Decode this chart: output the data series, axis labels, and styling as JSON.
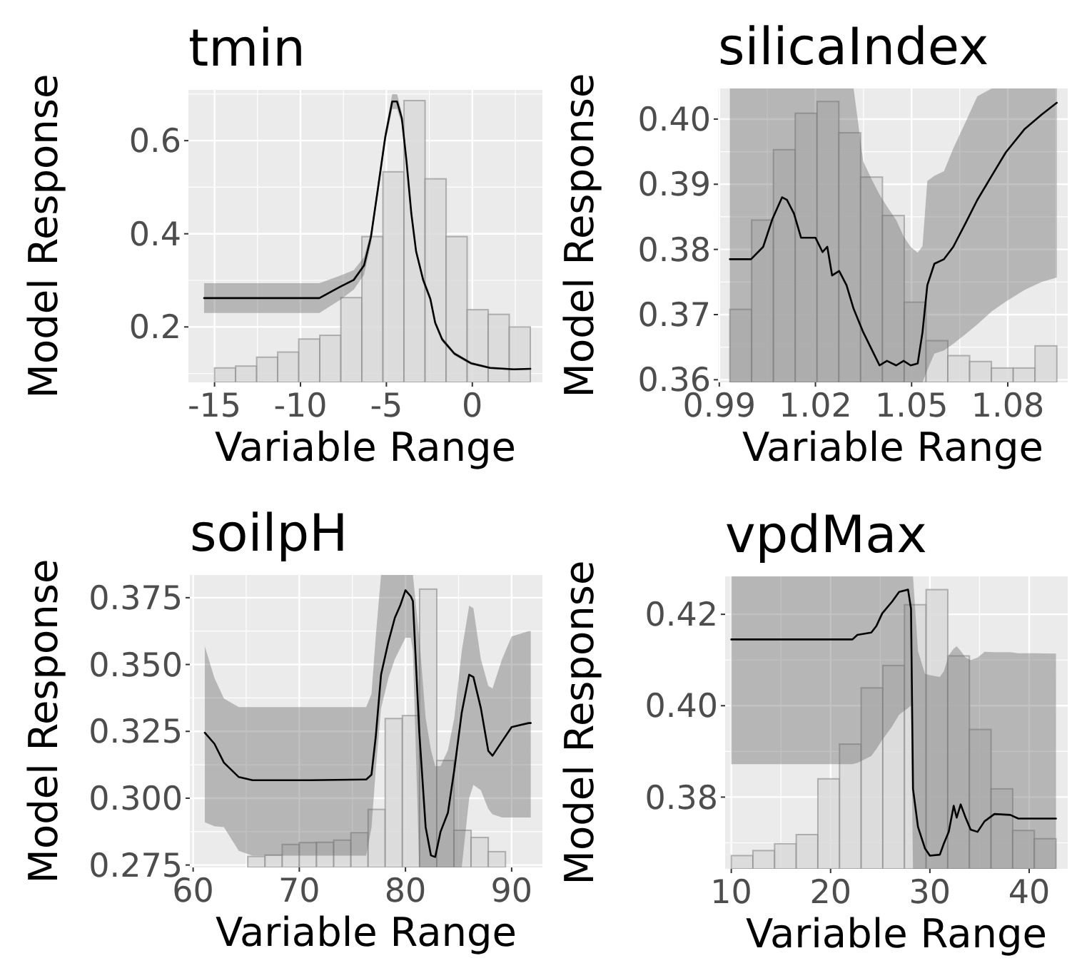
{
  "chart_data": [
    {
      "type": "histogram",
      "title": "tmin",
      "xlabel": "Variable Range",
      "ylabel": "Model Response",
      "xlim": [
        -16.52,
        4.08
      ],
      "ylim": [
        0.081,
        0.709
      ],
      "xticks": [
        -15,
        -10,
        -5,
        0
      ],
      "yticks": [
        0.2,
        0.4,
        0.6
      ],
      "grid": true,
      "series": [
        {
          "color": "#d9d9d9",
          "bins": [
            -15,
            -13.775,
            -12.55,
            -11.325,
            -10.1,
            -8.875,
            -7.65,
            -6.425,
            -5.2,
            -3.975,
            -2.75,
            -1.525,
            -0.3,
            0.925,
            2.15,
            3.375
          ],
          "values": [
            0.112,
            0.116,
            0.135,
            0.146,
            0.174,
            0.182,
            0.263,
            0.394,
            0.533,
            0.686,
            0.518,
            0.394,
            0.237,
            0.227,
            0.2
          ]
        },
        {
          "type": "line",
          "color": "#000000",
          "x": [
            -15.61,
            -8.9,
            -7.7,
            -6.9,
            -6.3,
            -5.9,
            -5.5,
            -5.07,
            -4.66,
            -4.38,
            -4.1,
            -3.83,
            -3.55,
            -3.27,
            -2.86,
            -2.44,
            -2.16,
            -1.75,
            -1.05,
            -0.08,
            1.03,
            2.41,
            3.38
          ],
          "values": [
            0.262,
            0.262,
            0.286,
            0.301,
            0.332,
            0.393,
            0.495,
            0.607,
            0.684,
            0.684,
            0.648,
            0.556,
            0.444,
            0.362,
            0.301,
            0.26,
            0.209,
            0.173,
            0.143,
            0.122,
            0.112,
            0.109,
            0.11
          ],
          "lower": [
            0.23,
            0.23,
            0.258,
            0.28,
            0.312,
            0.378,
            0.482,
            0.593,
            0.668,
            0.668,
            0.635,
            0.545,
            0.435,
            0.354,
            0.293,
            0.253,
            0.203,
            0.168,
            0.139,
            0.119,
            0.11,
            0.107,
            0.108
          ],
          "upper": [
            0.294,
            0.294,
            0.31,
            0.322,
            0.35,
            0.405,
            0.508,
            0.62,
            0.7,
            0.7,
            0.66,
            0.567,
            0.453,
            0.37,
            0.309,
            0.267,
            0.215,
            0.178,
            0.147,
            0.125,
            0.115,
            0.111,
            0.112
          ]
        }
      ]
    },
    {
      "type": "histogram",
      "title": "silicaIndex",
      "xlabel": "Variable Range",
      "ylabel": "Model Response",
      "xlim": [
        0.9896,
        1.0987
      ],
      "ylim": [
        0.3596,
        0.4047
      ],
      "xticks": [
        0.99,
        1.02,
        1.05,
        1.08
      ],
      "yticks": [
        0.36,
        0.37,
        0.38,
        0.39,
        {
          "value": 0.4,
          "label": "0.40"
        }
      ],
      "grid": true,
      "series": [
        {
          "color": "#d9d9d9",
          "bins": [
            0.9933,
            1.0001,
            1.0069,
            1.0137,
            1.0205,
            1.0273,
            1.0341,
            1.0409,
            1.0477,
            1.0545,
            1.0613,
            1.0681,
            1.0749,
            1.0817,
            1.0885,
            1.0953
          ],
          "values": [
            0.3708,
            0.3845,
            0.3953,
            0.4009,
            0.4027,
            0.3979,
            0.3911,
            0.3852,
            0.3719,
            0.366,
            0.3637,
            0.3628,
            0.3618,
            0.3618,
            0.3652
          ]
        },
        {
          "type": "line",
          "color": "#000000",
          "x": [
            0.9933,
            0.9999,
            1.0037,
            1.0066,
            1.0096,
            1.0111,
            1.0133,
            1.0155,
            1.0178,
            1.02,
            1.0222,
            1.0237,
            1.0252,
            1.0274,
            1.0297,
            1.0319,
            1.0349,
            1.0378,
            1.04,
            1.0423,
            1.0452,
            1.0475,
            1.0497,
            1.0519,
            1.0534,
            1.0549,
            1.0571,
            1.0601,
            1.063,
            1.0668,
            1.0705,
            1.075,
            1.0794,
            1.0853,
            1.0906,
            1.0953
          ],
          "values": [
            0.3785,
            0.3785,
            0.3804,
            0.3847,
            0.388,
            0.3876,
            0.3855,
            0.3818,
            0.3818,
            0.3818,
            0.3796,
            0.3804,
            0.376,
            0.3767,
            0.3745,
            0.3709,
            0.3673,
            0.3644,
            0.3622,
            0.3629,
            0.3622,
            0.3629,
            0.3622,
            0.3625,
            0.3673,
            0.3745,
            0.3778,
            0.3785,
            0.3804,
            0.384,
            0.3876,
            0.3913,
            0.3949,
            0.3985,
            0.4007,
            0.4025
          ],
          "lower": [
            0.3596,
            0.3596,
            0.3596,
            0.3596,
            0.3596,
            0.3596,
            0.3596,
            0.3596,
            0.3596,
            0.3596,
            0.3596,
            0.3596,
            0.3596,
            0.3596,
            0.3596,
            0.3596,
            0.3596,
            0.3596,
            0.3596,
            0.3596,
            0.3596,
            0.3596,
            0.3596,
            0.3596,
            0.3596,
            0.3615,
            0.364,
            0.3645,
            0.3655,
            0.367,
            0.3685,
            0.3705,
            0.372,
            0.3738,
            0.375,
            0.3757
          ],
          "upper": [
            0.4047,
            0.4047,
            0.4047,
            0.4047,
            0.4047,
            0.4047,
            0.4047,
            0.4047,
            0.4047,
            0.4047,
            0.4047,
            0.4047,
            0.4047,
            0.4047,
            0.4047,
            0.4047,
            0.3935,
            0.3905,
            0.3884,
            0.3866,
            0.3845,
            0.382,
            0.3804,
            0.3795,
            0.3805,
            0.3905,
            0.3913,
            0.392,
            0.3955,
            0.3995,
            0.4035,
            0.4047,
            0.4047,
            0.4047,
            0.4047,
            0.4047
          ]
        }
      ]
    },
    {
      "type": "histogram",
      "title": "soilpH",
      "xlabel": "Variable Range",
      "ylabel": "Model Response",
      "xlim": [
        59.69,
        92.9
      ],
      "ylim": [
        0.2741,
        0.3835
      ],
      "xticks": [
        60,
        70,
        80,
        90
      ],
      "yticks": [
        0.275,
        {
          "value": 0.3,
          "label": "0.300"
        },
        0.325,
        {
          "value": 0.35,
          "label": "0.350"
        },
        0.375
      ],
      "grid": true,
      "series": [
        {
          "color": "#d9d9d9",
          "bins": [
            65.15,
            66.77,
            68.39,
            70.0,
            71.62,
            73.24,
            74.86,
            76.48,
            78.09,
            79.71,
            81.33,
            82.95,
            84.57,
            86.18,
            87.8,
            89.42
          ],
          "values": [
            0.2782,
            0.2787,
            0.2827,
            0.2834,
            0.2835,
            0.2843,
            0.2871,
            0.2958,
            0.3298,
            0.3309,
            0.3782,
            0.3141,
            0.288,
            0.2853,
            0.28
          ]
        },
        {
          "type": "line",
          "color": "#000000",
          "x": [
            61.1,
            62.0,
            62.9,
            64.3,
            65.6,
            71,
            76.3,
            76.8,
            77.2,
            77.7,
            78.4,
            79,
            79.5,
            80.0,
            80.5,
            80.7,
            81.3,
            81.9,
            82.4,
            82.8,
            83.3,
            84.0,
            84.6,
            85.3,
            86.0,
            86.4,
            87.1,
            87.8,
            88.2,
            89.1,
            90.0,
            91.6,
            91.8
          ],
          "values": [
            0.3245,
            0.3204,
            0.3133,
            0.3079,
            0.3067,
            0.3067,
            0.307,
            0.3088,
            0.323,
            0.3462,
            0.3586,
            0.3675,
            0.372,
            0.3778,
            0.3755,
            0.3737,
            0.3248,
            0.2892,
            0.2786,
            0.278,
            0.2874,
            0.2946,
            0.3106,
            0.332,
            0.3462,
            0.3453,
            0.3337,
            0.3177,
            0.3159,
            0.3213,
            0.3266,
            0.3281,
            0.3281
          ],
          "lower": [
            0.291,
            0.2895,
            0.2892,
            0.2803,
            0.2785,
            0.2785,
            0.2785,
            0.289,
            0.3106,
            0.3337,
            0.345,
            0.352,
            0.356,
            0.36,
            0.36,
            0.355,
            0.2741,
            0.2741,
            0.2741,
            0.2741,
            0.2741,
            0.2741,
            0.2741,
            0.2741,
            0.3,
            0.305,
            0.303,
            0.296,
            0.294,
            0.2928,
            0.2928,
            0.2928,
            0.2928
          ],
          "upper": [
            0.3568,
            0.345,
            0.3373,
            0.3341,
            0.3341,
            0.3341,
            0.3341,
            0.339,
            0.3604,
            0.3835,
            0.3835,
            0.3835,
            0.3835,
            0.3835,
            0.3835,
            0.3835,
            0.36,
            0.33,
            0.318,
            0.312,
            0.312,
            0.318,
            0.33,
            0.355,
            0.372,
            0.371,
            0.352,
            0.342,
            0.341,
            0.352,
            0.3605,
            0.3625,
            0.3625
          ]
        }
      ]
    },
    {
      "type": "histogram",
      "title": "vpdMax",
      "xlabel": "Variable Range",
      "ylabel": "Model Response",
      "xlim": [
        9.38,
        43.88
      ],
      "ylim": [
        0.3643,
        0.4283
      ],
      "xticks": [
        10,
        20,
        30,
        40
      ],
      "yticks": [
        0.38,
        {
          "value": 0.4,
          "label": "0.40"
        },
        0.42
      ],
      "grid": true,
      "series": [
        {
          "color": "#d9d9d9",
          "bins": [
            10,
            12.18,
            14.36,
            16.54,
            18.72,
            20.9,
            23.08,
            25.26,
            27.44,
            29.62,
            31.8,
            33.98,
            36.16,
            38.34,
            40.52,
            42.7
          ],
          "values": [
            0.3672,
            0.3683,
            0.3698,
            0.3718,
            0.384,
            0.3916,
            0.4039,
            0.4088,
            0.4221,
            0.4254,
            0.4109,
            0.3948,
            0.3818,
            0.3727,
            0.3709
          ]
        },
        {
          "type": "line",
          "color": "#000000",
          "x": [
            10,
            22.2,
            22.7,
            24.1,
            24.6,
            25.2,
            26.2,
            26.9,
            27.8,
            28.1,
            28.3,
            28.8,
            29.5,
            30.0,
            31.0,
            31.4,
            31.9,
            32.4,
            32.7,
            33.1,
            33.6,
            34.1,
            34.8,
            35.5,
            36.5,
            38.1,
            38.9,
            40.5,
            42.7
          ],
          "values": [
            0.4145,
            0.4145,
            0.4155,
            0.416,
            0.4174,
            0.4202,
            0.4228,
            0.4249,
            0.4254,
            0.4212,
            0.3818,
            0.3735,
            0.3688,
            0.3672,
            0.3674,
            0.3698,
            0.3724,
            0.3781,
            0.3755,
            0.3784,
            0.3755,
            0.3729,
            0.3724,
            0.3747,
            0.3763,
            0.3761,
            0.3753,
            0.3753,
            0.3753
          ],
          "lower": [
            0.3872,
            0.3872,
            0.3875,
            0.389,
            0.3905,
            0.3925,
            0.3955,
            0.398,
            0.3995,
            0.4,
            0.3643,
            0.3643,
            0.3643,
            0.3643,
            0.3643,
            0.3643,
            0.3643,
            0.3643,
            0.3643,
            0.3643,
            0.3643,
            0.3643,
            0.3643,
            0.3643,
            0.3643,
            0.3643,
            0.3643,
            0.3643,
            0.3643
          ],
          "upper": [
            0.4283,
            0.4283,
            0.4283,
            0.4283,
            0.4283,
            0.4283,
            0.4283,
            0.4283,
            0.4283,
            0.4283,
            0.4283,
            0.412,
            0.407,
            0.4067,
            0.4063,
            0.4075,
            0.411,
            0.4125,
            0.413,
            0.412,
            0.4105,
            0.41,
            0.4105,
            0.4118,
            0.4117,
            0.4117,
            0.4115,
            0.4115,
            0.4114
          ]
        }
      ]
    }
  ]
}
